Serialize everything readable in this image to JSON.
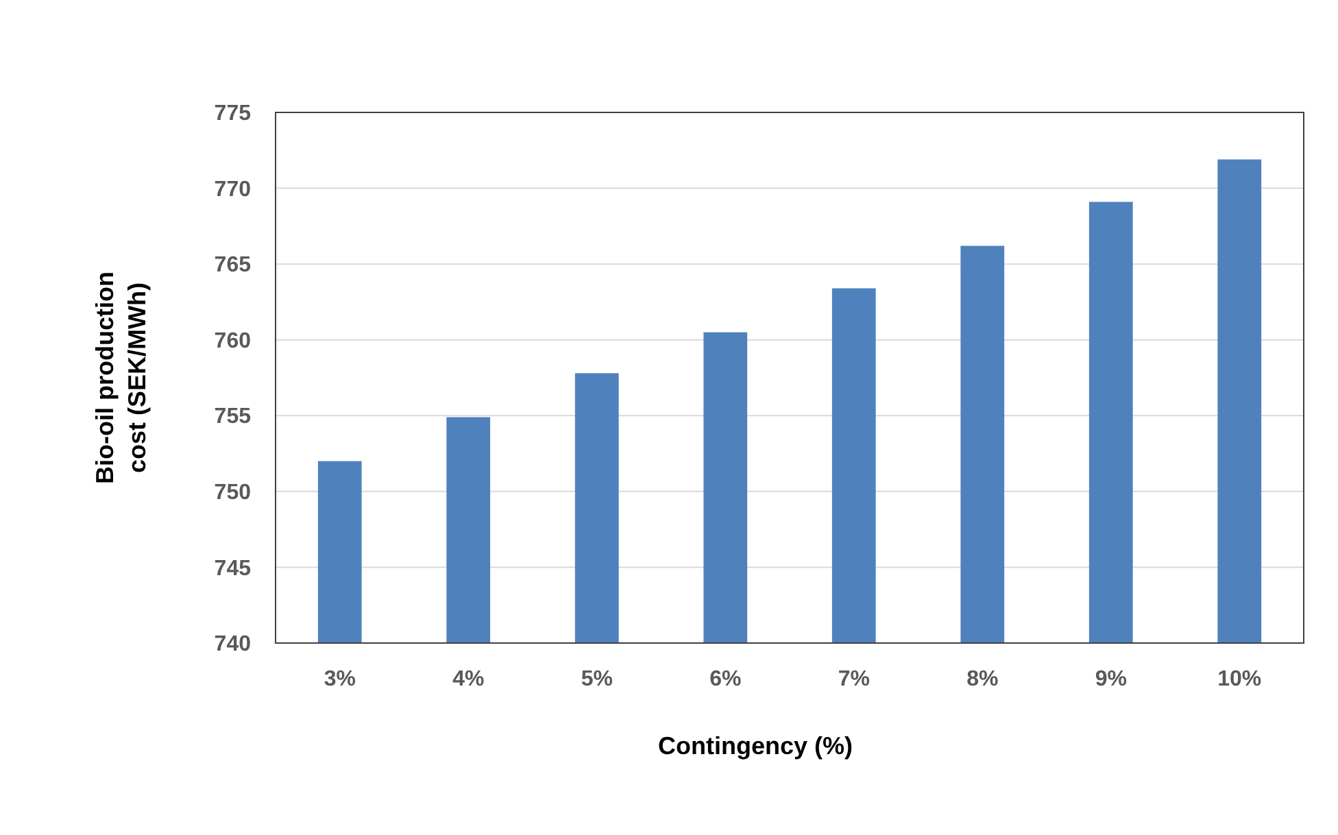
{
  "chart_data": {
    "type": "bar",
    "xlabel": "Contingency (%)",
    "ylabel": "Bio-oil production cost (SEK/MWh)",
    "categories": [
      "3%",
      "4%",
      "5%",
      "6%",
      "7%",
      "8%",
      "9%",
      "10%"
    ],
    "values": [
      752.0,
      754.9,
      757.8,
      760.5,
      763.4,
      766.2,
      769.1,
      771.9
    ],
    "color": "#4f81bd",
    "ylim": [
      740,
      775
    ],
    "yticks": [
      740,
      745,
      750,
      755,
      760,
      765,
      770,
      775
    ],
    "grid": "y"
  }
}
